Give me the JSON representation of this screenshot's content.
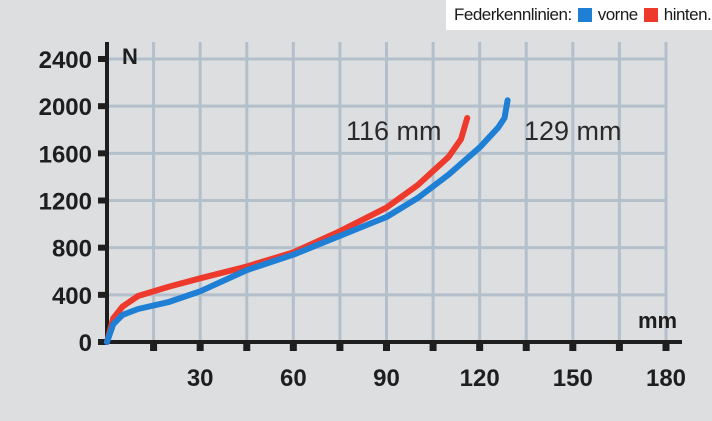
{
  "legend": {
    "title": "Federkennlinien:",
    "items": [
      {
        "label": "vorne",
        "color": "#1f7fd4"
      },
      {
        "label": "hinten.",
        "color": "#ee3a2c"
      }
    ]
  },
  "annotations": {
    "red_travel": "116 mm",
    "blue_travel": "129 mm"
  },
  "chart_data": {
    "type": "line",
    "title": "Federkennlinien",
    "xlabel": "mm",
    "ylabel": "N",
    "xlim": [
      0,
      180
    ],
    "ylim": [
      0,
      2400
    ],
    "x_ticks": [
      30,
      60,
      90,
      120,
      150,
      180
    ],
    "x_minor_ticks": [
      15,
      45,
      75,
      105,
      135,
      165
    ],
    "y_ticks": [
      0,
      400,
      800,
      1200,
      1600,
      2000,
      2400
    ],
    "grid": true,
    "legend_position": "top-right",
    "series": [
      {
        "name": "vorne",
        "color": "#1f7fd4",
        "annotation": "129 mm",
        "x": [
          0,
          2,
          5,
          10,
          20,
          30,
          45,
          60,
          75,
          90,
          100,
          110,
          120,
          126,
          128,
          129
        ],
        "y": [
          0,
          150,
          230,
          280,
          340,
          430,
          610,
          740,
          900,
          1060,
          1220,
          1420,
          1650,
          1820,
          1900,
          2050
        ]
      },
      {
        "name": "hinten",
        "color": "#ee3a2c",
        "annotation": "116 mm",
        "x": [
          0,
          2,
          5,
          10,
          20,
          30,
          45,
          60,
          75,
          90,
          100,
          110,
          114,
          116
        ],
        "y": [
          0,
          200,
          300,
          390,
          470,
          540,
          640,
          760,
          940,
          1140,
          1330,
          1570,
          1720,
          1900
        ]
      }
    ]
  }
}
